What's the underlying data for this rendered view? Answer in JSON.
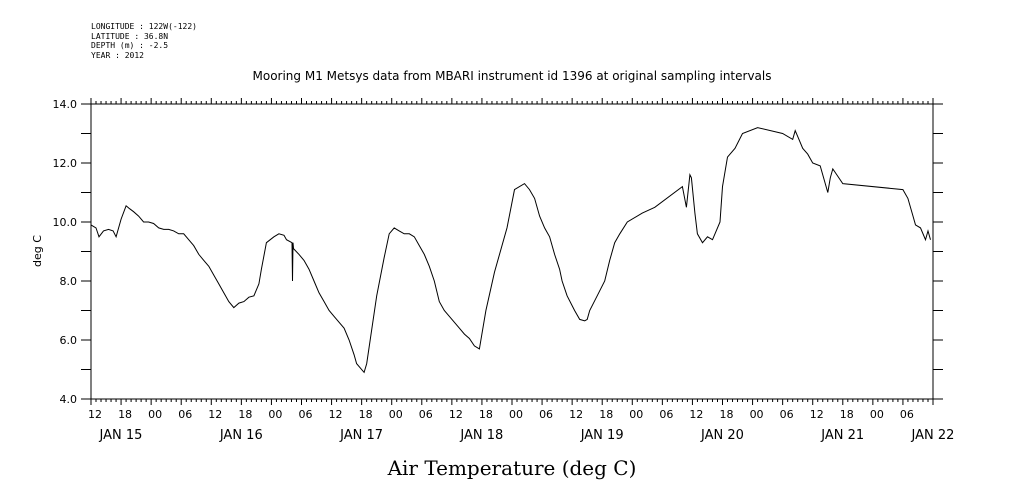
{
  "header": {
    "longitude": "LONGITUDE : 122W(-122)",
    "latitude": "LATITUDE : 36.8N",
    "depth": "DEPTH (m) : -2.5",
    "year": "YEAR : 2012"
  },
  "chart_data": {
    "type": "line",
    "title": "Mooring M1 Metsys data from MBARI instrument id 1396 at original sampling intervals",
    "xlabel": "Air Temperature (deg C)",
    "ylabel": "deg C",
    "ylim": [
      4.0,
      14.0
    ],
    "yticks": [
      "4.0",
      "6.0",
      "8.0",
      "10.0",
      "12.0",
      "14.0"
    ],
    "xlim_hours": [
      12,
      180
    ],
    "hour_ticks": [
      {
        "h": 12,
        "label": "12"
      },
      {
        "h": 18,
        "label": "18"
      },
      {
        "h": 24,
        "label": "00"
      },
      {
        "h": 30,
        "label": "06"
      },
      {
        "h": 36,
        "label": "12"
      },
      {
        "h": 42,
        "label": "18"
      },
      {
        "h": 48,
        "label": "00"
      },
      {
        "h": 54,
        "label": "06"
      },
      {
        "h": 60,
        "label": "12"
      },
      {
        "h": 66,
        "label": "18"
      },
      {
        "h": 72,
        "label": "00"
      },
      {
        "h": 78,
        "label": "06"
      },
      {
        "h": 84,
        "label": "12"
      },
      {
        "h": 90,
        "label": "18"
      },
      {
        "h": 96,
        "label": "00"
      },
      {
        "h": 102,
        "label": "06"
      },
      {
        "h": 108,
        "label": "12"
      },
      {
        "h": 114,
        "label": "18"
      },
      {
        "h": 120,
        "label": "00"
      },
      {
        "h": 126,
        "label": "06"
      },
      {
        "h": 132,
        "label": "12"
      },
      {
        "h": 138,
        "label": "18"
      },
      {
        "h": 144,
        "label": "00"
      },
      {
        "h": 150,
        "label": "06"
      },
      {
        "h": 156,
        "label": "12"
      },
      {
        "h": 162,
        "label": "18"
      },
      {
        "h": 168,
        "label": "00"
      },
      {
        "h": 174,
        "label": "06"
      }
    ],
    "date_labels": [
      {
        "h": 12,
        "label": "JAN 15"
      },
      {
        "h": 36,
        "label": "JAN 16"
      },
      {
        "h": 60,
        "label": "JAN 17"
      },
      {
        "h": 84,
        "label": "JAN 18"
      },
      {
        "h": 108,
        "label": "JAN 19"
      },
      {
        "h": 132,
        "label": "JAN 20"
      },
      {
        "h": 156,
        "label": "JAN 21"
      },
      {
        "h": 174,
        "label": "JAN 22"
      }
    ],
    "series": [
      {
        "x": [
          12.0,
          13.0,
          13.6,
          14.5,
          15.5,
          16.4,
          17.0,
          18.0,
          19.0,
          19.7,
          20.5,
          21.5,
          22.5,
          23.5,
          24.5,
          25.5,
          26.5,
          27.5,
          28.5,
          29.5,
          30.5,
          31.5,
          32.5,
          33.5,
          34.5,
          35.5,
          36.5,
          37.5,
          38.5,
          39.5,
          40.5,
          41.5,
          42.5,
          43.5,
          44.5,
          45.5,
          46.0,
          47.0,
          48.5,
          49.5,
          50.5,
          51.0,
          52.1,
          52.2,
          52.3,
          52.4,
          53.5,
          54.5,
          55.5,
          56.5,
          57.5,
          58.5,
          59.5,
          60.5,
          61.5,
          62.5,
          63.5,
          64.5,
          65.0,
          66.5,
          67.0,
          69.0,
          70.5,
          71.5,
          72.5,
          73.5,
          74.5,
          75.5,
          76.5,
          77.5,
          78.5,
          79.5,
          80.5,
          81.5,
          82.5,
          83.5,
          84.5,
          85.5,
          86.5,
          87.5,
          88.5,
          89.5,
          90.0,
          90.8,
          92.5,
          95.0,
          96.5,
          98.5,
          99.5,
          100.5,
          101.5,
          102.5,
          103.5,
          104.5,
          105.5,
          106.0,
          107.0,
          108.5,
          109.5,
          110.5,
          111.0,
          111.5,
          113.0,
          114.5,
          115.5,
          116.5,
          117.5,
          119.0,
          122.0,
          124.5,
          130.0,
          130.8,
          131.5,
          131.8,
          132.5,
          133.0,
          134.0,
          135.0,
          136.0,
          136.5,
          137.5,
          138.0,
          139.0,
          140.5,
          142.0,
          145.0,
          150.0,
          152.0,
          152.5,
          153.0,
          154.0,
          155.0,
          156.0,
          157.5,
          159.0,
          159.5,
          160.0,
          162.0,
          174.0,
          175.0,
          176.0,
          176.5,
          177.5,
          178.5,
          179.0,
          179.5
        ],
        "y": [
          9.9,
          9.8,
          9.5,
          9.7,
          9.75,
          9.7,
          9.5,
          10.1,
          10.55,
          10.45,
          10.35,
          10.2,
          10.0,
          10.0,
          9.95,
          9.8,
          9.75,
          9.75,
          9.7,
          9.6,
          9.6,
          9.4,
          9.2,
          8.9,
          8.7,
          8.5,
          8.2,
          7.9,
          7.6,
          7.3,
          7.1,
          7.25,
          7.3,
          7.45,
          7.5,
          7.9,
          8.4,
          9.3,
          9.5,
          9.6,
          9.55,
          9.4,
          9.3,
          8.0,
          9.3,
          9.1,
          8.9,
          8.7,
          8.4,
          8.0,
          7.6,
          7.3,
          7.0,
          6.8,
          6.6,
          6.4,
          6.0,
          5.5,
          5.2,
          4.9,
          5.2,
          7.5,
          8.8,
          9.6,
          9.8,
          9.7,
          9.6,
          9.6,
          9.5,
          9.2,
          8.9,
          8.5,
          8.0,
          7.3,
          7.0,
          6.8,
          6.6,
          6.4,
          6.2,
          6.05,
          5.8,
          5.7,
          6.2,
          7.0,
          8.3,
          9.8,
          11.1,
          11.3,
          11.1,
          10.8,
          10.2,
          9.8,
          9.5,
          8.9,
          8.4,
          8.0,
          7.5,
          7.0,
          6.7,
          6.65,
          6.7,
          7.0,
          7.5,
          8.0,
          8.7,
          9.3,
          9.6,
          10.0,
          10.3,
          10.5,
          11.2,
          10.5,
          11.6,
          11.5,
          10.3,
          9.6,
          9.3,
          9.5,
          9.4,
          9.6,
          10.0,
          11.2,
          12.2,
          12.5,
          13.0,
          13.2,
          13.0,
          12.8,
          13.1,
          12.9,
          12.5,
          12.3,
          12.0,
          11.9,
          11.0,
          11.5,
          11.8,
          11.3,
          11.1,
          10.8,
          10.2,
          9.9,
          9.8,
          9.4,
          9.7,
          9.4
        ]
      }
    ],
    "grid": false
  }
}
